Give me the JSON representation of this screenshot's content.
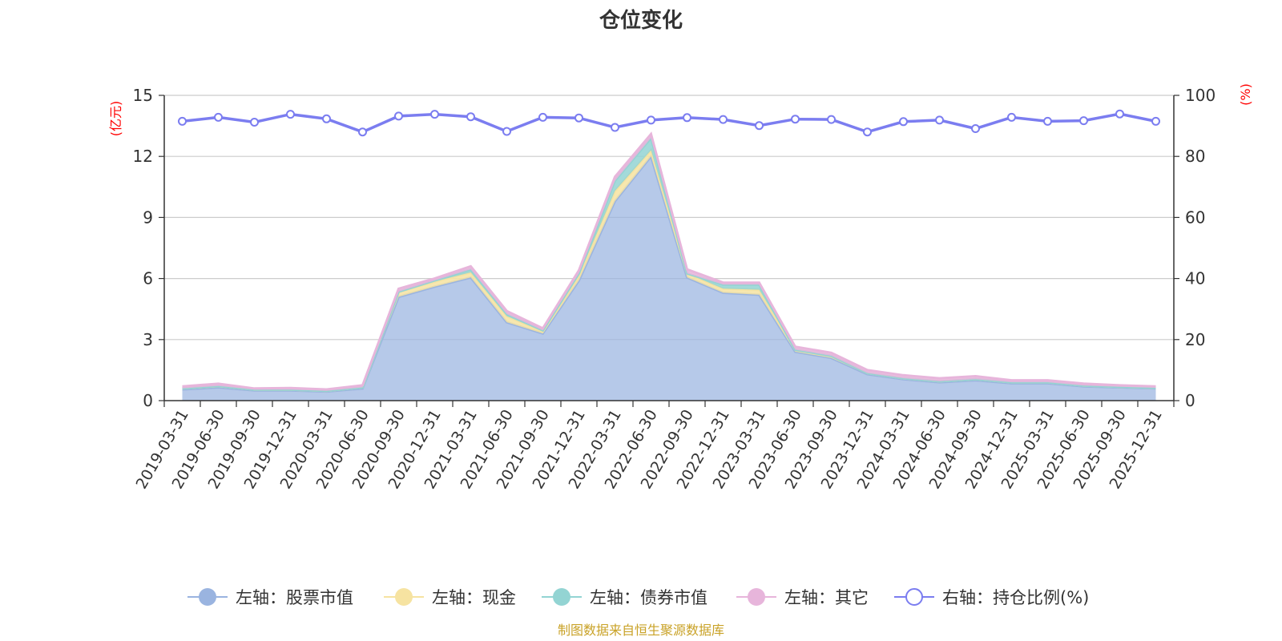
{
  "chart_data": {
    "type": "area",
    "title": "仓位变化",
    "y_left_unit": "(亿元)",
    "y_right_unit": "(%)",
    "ylim_left": [
      0,
      15
    ],
    "ylim_right": [
      0,
      100
    ],
    "y_left_ticks": [
      "0",
      "3",
      "6",
      "9",
      "12",
      "15"
    ],
    "y_right_ticks": [
      "0",
      "20",
      "40",
      "60",
      "80",
      "100"
    ],
    "grid": true,
    "legend_position": "bottom",
    "categories": [
      "2019-03-31",
      "2019-06-30",
      "2019-09-30",
      "2019-12-31",
      "2020-03-31",
      "2020-06-30",
      "2020-09-30",
      "2020-12-31",
      "2021-03-31",
      "2021-06-30",
      "2021-09-30",
      "2021-12-31",
      "2022-03-31",
      "2022-06-30",
      "2022-09-30",
      "2022-12-31",
      "2023-03-31",
      "2023-06-30",
      "2023-09-30",
      "2023-12-31",
      "2024-03-31",
      "2024-06-30",
      "2024-09-30",
      "2024-12-31",
      "2025-03-31",
      "2025-06-30",
      "2025-09-30",
      "2025-12-31"
    ],
    "series": [
      {
        "name": "左轴：股票市值",
        "axis": "left",
        "color": "#9ab4e0",
        "values": [
          0.55,
          0.65,
          0.5,
          0.5,
          0.45,
          0.6,
          5.1,
          5.6,
          6.05,
          3.85,
          3.3,
          5.9,
          9.8,
          12.0,
          6.05,
          5.3,
          5.2,
          2.4,
          2.1,
          1.3,
          1.05,
          0.9,
          1.0,
          0.85,
          0.85,
          0.7,
          0.65,
          0.6
        ]
      },
      {
        "name": "左轴：现金",
        "axis": "left",
        "color": "#f6e3a1",
        "values": [
          0.05,
          0.07,
          0.04,
          0.04,
          0.03,
          0.05,
          0.25,
          0.25,
          0.25,
          0.3,
          0.1,
          0.25,
          0.5,
          0.3,
          0.2,
          0.2,
          0.25,
          0.1,
          0.1,
          0.05,
          0.05,
          0.05,
          0.05,
          0.05,
          0.05,
          0.04,
          0.03,
          0.03
        ]
      },
      {
        "name": "左轴：债券市值",
        "axis": "left",
        "color": "#93d4d3",
        "values": [
          0.0,
          0.0,
          0.0,
          0.0,
          0.0,
          0.0,
          0.0,
          0.05,
          0.15,
          0.1,
          0.05,
          0.1,
          0.5,
          0.6,
          0.0,
          0.2,
          0.25,
          0.0,
          0.0,
          0.0,
          0.0,
          0.0,
          0.0,
          0.0,
          0.0,
          0.0,
          0.0,
          0.0
        ]
      },
      {
        "name": "左轴：其它",
        "axis": "left",
        "color": "#e7b5db",
        "values": [
          0.1,
          0.11,
          0.06,
          0.08,
          0.07,
          0.1,
          0.15,
          0.1,
          0.15,
          0.15,
          0.1,
          0.15,
          0.2,
          0.2,
          0.2,
          0.1,
          0.1,
          0.15,
          0.15,
          0.15,
          0.15,
          0.15,
          0.15,
          0.1,
          0.1,
          0.1,
          0.07,
          0.07
        ]
      },
      {
        "name": "右轴：持仓比例(%)",
        "axis": "right",
        "color": "#7b7df0",
        "type": "line",
        "values": [
          91.5,
          92.8,
          91.2,
          93.8,
          92.3,
          88.0,
          93.2,
          93.8,
          93.0,
          88.2,
          92.8,
          92.6,
          89.5,
          91.9,
          92.7,
          92.1,
          90.1,
          92.2,
          92.1,
          88.0,
          91.4,
          91.9,
          89.1,
          92.8,
          91.5,
          91.7,
          93.9,
          91.5
        ]
      }
    ],
    "source_note": "制图数据来自恒生聚源数据库"
  }
}
